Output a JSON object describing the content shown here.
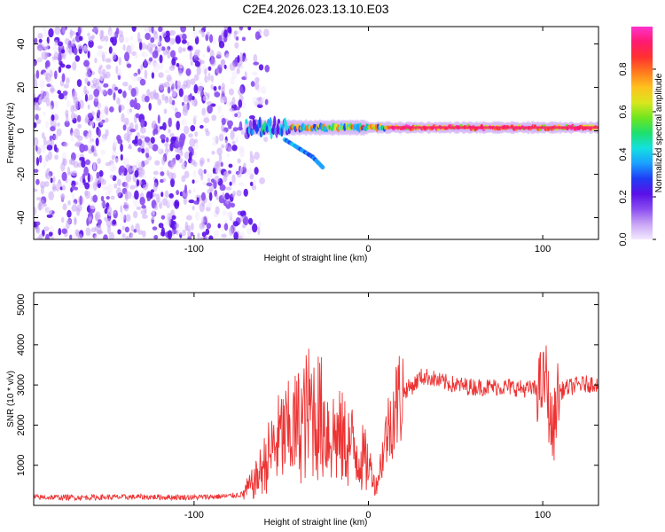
{
  "figure": {
    "title": "C2E4.2026.023.13.10.E03"
  },
  "chart_data": [
    {
      "type": "heatmap",
      "xlabel": "Height of straight line (km)",
      "ylabel": "Frequency (Hz)",
      "xlim": [
        -192,
        132
      ],
      "ylim": [
        -50,
        48
      ],
      "x_ticks": [
        -100,
        0,
        100
      ],
      "y_ticks": [
        -40,
        -20,
        0,
        20,
        40
      ],
      "colorbar": {
        "label": "Normalized spectral amplitude",
        "range": [
          0,
          1
        ],
        "ticks": [
          0.0,
          0.2,
          0.4,
          0.6,
          0.8
        ],
        "colors": [
          "#f3e9ff",
          "#c9a6f5",
          "#8a4df0",
          "#5a10e8",
          "#1f3df5",
          "#1aa0ff",
          "#14e0e0",
          "#1ee06e",
          "#6ee61e",
          "#d9e61e",
          "#ffc21e",
          "#ff7a1e",
          "#ff3030",
          "#ff1a70",
          "#ff33cc"
        ]
      },
      "features": [
        {
          "name": "noise",
          "x_range": [
            -192,
            -70
          ],
          "y_range": [
            -50,
            48
          ],
          "amplitude": 0.15
        },
        {
          "name": "trail",
          "x_range": [
            -70,
            132
          ],
          "freq_hz": 1.5,
          "amplitude_peak": 1.0
        },
        {
          "name": "descending branch",
          "x": [
            -48,
            -40,
            -32,
            -26
          ],
          "y": [
            -4,
            -8,
            -12,
            -17
          ],
          "amplitude": 0.3
        }
      ]
    },
    {
      "type": "line",
      "xlabel": "Height of straight line (km)",
      "ylabel": "SNR (10 * v/v)",
      "xlim": [
        -192,
        132
      ],
      "ylim": [
        0,
        5300
      ],
      "x_ticks": [
        -100,
        0,
        100
      ],
      "y_ticks": [
        1000,
        2000,
        3000,
        4000,
        5000
      ],
      "color": "#ee3333",
      "series": [
        {
          "x": [
            -192,
            -160,
            -130,
            -100,
            -80,
            -72,
            -65,
            -60,
            -55,
            -50,
            -45,
            -40,
            -36,
            -33,
            -30,
            -26,
            -22,
            -18,
            -14,
            -10,
            -6,
            -2,
            2,
            4,
            7,
            10,
            14,
            18,
            22,
            26,
            30,
            35,
            40,
            50,
            60,
            70,
            80,
            90,
            95,
            100,
            102,
            104,
            106,
            108,
            112,
            120,
            132
          ],
          "y": [
            200,
            200,
            210,
            200,
            230,
            280,
            600,
            1000,
            1400,
            1700,
            1800,
            2000,
            2200,
            2400,
            2300,
            2100,
            1800,
            1700,
            1600,
            1500,
            1300,
            1100,
            900,
            400,
            1000,
            1700,
            2300,
            2700,
            2900,
            3000,
            3200,
            3200,
            3100,
            3000,
            2950,
            2950,
            2950,
            2900,
            2900,
            3000,
            3200,
            2200,
            1700,
            2700,
            2900,
            3000,
            3050
          ]
        }
      ]
    }
  ]
}
